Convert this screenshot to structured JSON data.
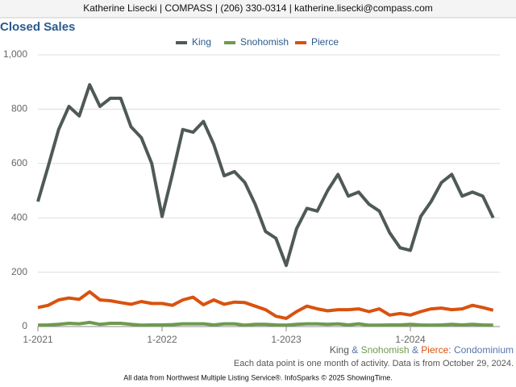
{
  "header": "Katherine Lisecki | COMPASS | (206) 330-0314 | katherine.lisecki@compass.com",
  "chart_data": {
    "type": "line",
    "title": "Closed Sales",
    "categories": [
      "1-2021",
      null,
      null,
      null,
      null,
      null,
      null,
      null,
      null,
      null,
      null,
      null,
      "1-2022",
      null,
      null,
      null,
      null,
      null,
      null,
      null,
      null,
      null,
      null,
      null,
      "1-2023",
      null,
      null,
      null,
      null,
      null,
      null,
      null,
      null,
      null,
      null,
      null,
      "1-2024",
      null,
      null,
      null,
      null,
      null,
      null,
      null,
      null
    ],
    "series": [
      {
        "name": "King",
        "color": "#505a55",
        "values": [
          460,
          590,
          725,
          810,
          775,
          890,
          810,
          840,
          840,
          735,
          695,
          600,
          405,
          560,
          725,
          715,
          755,
          670,
          555,
          570,
          530,
          450,
          350,
          325,
          225,
          360,
          435,
          425,
          500,
          560,
          480,
          495,
          450,
          425,
          345,
          290,
          280,
          405,
          460,
          530,
          560,
          480,
          495,
          480,
          400
        ]
      },
      {
        "name": "Snohomish",
        "color": "#6e9a4e",
        "values": [
          5,
          6,
          8,
          12,
          10,
          15,
          8,
          12,
          12,
          8,
          5,
          6,
          6,
          7,
          10,
          10,
          10,
          6,
          10,
          10,
          5,
          8,
          8,
          6,
          5,
          8,
          10,
          10,
          8,
          10,
          6,
          10,
          5,
          5,
          6,
          6,
          8,
          6,
          5,
          6,
          8,
          6,
          8,
          6,
          5
        ]
      },
      {
        "name": "Pierce",
        "color": "#d9520e",
        "values": [
          70,
          78,
          98,
          105,
          100,
          128,
          98,
          95,
          88,
          82,
          92,
          85,
          85,
          78,
          98,
          108,
          80,
          98,
          82,
          90,
          88,
          75,
          62,
          38,
          30,
          55,
          75,
          65,
          58,
          62,
          62,
          65,
          55,
          65,
          42,
          48,
          42,
          55,
          65,
          68,
          62,
          65,
          78,
          70,
          60
        ]
      }
    ],
    "ylim": [
      0,
      1000
    ],
    "yticks": [
      0,
      200,
      400,
      600,
      800,
      {
        "value": 1000,
        "label": "1,000"
      }
    ],
    "grid": true,
    "legend": "top",
    "segment_label": [
      {
        "text": "King",
        "color": "#505a55"
      },
      {
        "text": " & ",
        "color": "#5577aa"
      },
      {
        "text": "Snohomish",
        "color": "#6e9a4e"
      },
      {
        "text": " & ",
        "color": "#5577aa"
      },
      {
        "text": "Pierce",
        "color": "#d9520e"
      },
      {
        "text": ": Condominium",
        "color": "#5577aa"
      }
    ],
    "note": "Each data point is one month of activity. Data is from October 29, 2024.",
    "source": "All data from Northwest Multiple Listing Service®. InfoSparks © 2025 ShowingTime."
  }
}
